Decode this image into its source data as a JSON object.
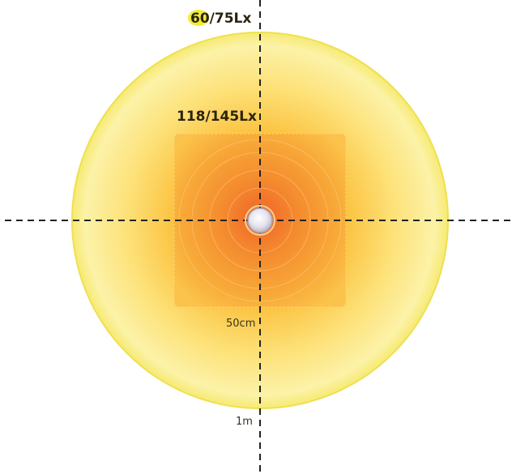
{
  "diagram": {
    "outer_illuminance": "60/75Lx",
    "inner_illuminance": "118/145Lx",
    "inner_distance": "50cm",
    "outer_distance": "1m"
  },
  "colors": {
    "outer_ring": "#f3e45a",
    "outer_fill": "#fbf09a",
    "mid_fill": "#ffd24a",
    "inner_square": "#f7a33a",
    "hotspot": "#f06a2a",
    "lamp": "#e9e6f0",
    "axis_line": "#222222",
    "label_highlight": "#f2ec3a"
  }
}
